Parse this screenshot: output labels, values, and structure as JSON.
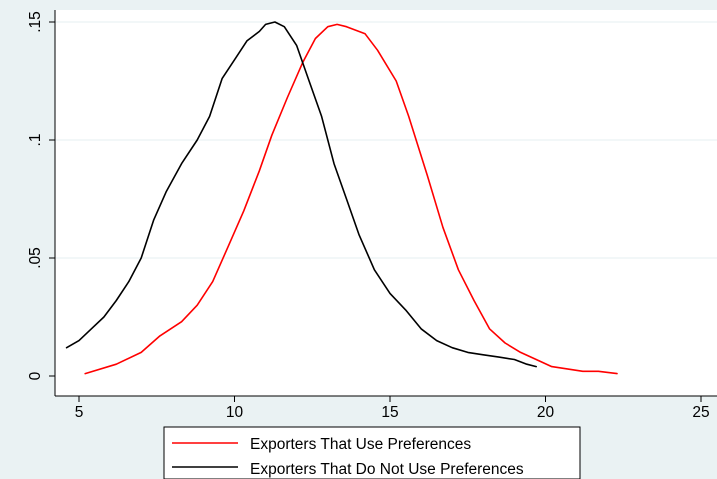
{
  "chart_data": {
    "type": "line",
    "xlim": [
      4.4,
      25
    ],
    "ylim": [
      0,
      0.15
    ],
    "x_ticks": [
      5,
      10,
      15,
      20,
      25
    ],
    "x_tick_labels": [
      "5",
      "10",
      "15",
      "20",
      "25"
    ],
    "y_ticks": [
      0,
      0.05,
      0.1,
      0.15
    ],
    "y_tick_labels": [
      "0",
      ".05",
      ".1",
      ".15"
    ],
    "grid": "horizontal",
    "legend_position": "bottom",
    "series": [
      {
        "name": "Exporters That Use Preferences",
        "color": "#ff0000",
        "x": [
          5.2,
          6.2,
          7.0,
          7.6,
          8.3,
          8.8,
          9.3,
          9.8,
          10.3,
          10.8,
          11.2,
          11.7,
          12.2,
          12.6,
          13.0,
          13.3,
          13.6,
          14.2,
          14.6,
          15.2,
          15.6,
          16.2,
          16.7,
          17.2,
          17.7,
          18.2,
          18.7,
          19.2,
          19.7,
          20.2,
          20.7,
          21.2,
          21.7,
          22.3
        ],
        "values": [
          0.001,
          0.005,
          0.01,
          0.017,
          0.023,
          0.03,
          0.04,
          0.055,
          0.07,
          0.087,
          0.102,
          0.118,
          0.133,
          0.143,
          0.148,
          0.149,
          0.148,
          0.145,
          0.138,
          0.125,
          0.11,
          0.085,
          0.063,
          0.045,
          0.032,
          0.02,
          0.014,
          0.01,
          0.007,
          0.004,
          0.003,
          0.002,
          0.002,
          0.001
        ]
      },
      {
        "name": "Exporters That Do Not Use Preferences",
        "color": "#000000",
        "x": [
          4.6,
          5.0,
          5.4,
          5.8,
          6.2,
          6.6,
          7.0,
          7.4,
          7.8,
          8.3,
          8.8,
          9.2,
          9.6,
          10.0,
          10.4,
          10.8,
          11.0,
          11.3,
          11.6,
          12.0,
          12.4,
          12.8,
          13.2,
          13.6,
          14.0,
          14.5,
          15.0,
          15.5,
          16.0,
          16.5,
          17.0,
          17.5,
          18.0,
          18.5,
          19.0,
          19.4,
          19.7
        ],
        "values": [
          0.012,
          0.015,
          0.02,
          0.025,
          0.032,
          0.04,
          0.05,
          0.066,
          0.078,
          0.09,
          0.1,
          0.11,
          0.126,
          0.134,
          0.142,
          0.146,
          0.149,
          0.15,
          0.148,
          0.14,
          0.125,
          0.11,
          0.09,
          0.075,
          0.06,
          0.045,
          0.035,
          0.028,
          0.02,
          0.015,
          0.012,
          0.01,
          0.009,
          0.008,
          0.007,
          0.005,
          0.004
        ]
      }
    ]
  }
}
